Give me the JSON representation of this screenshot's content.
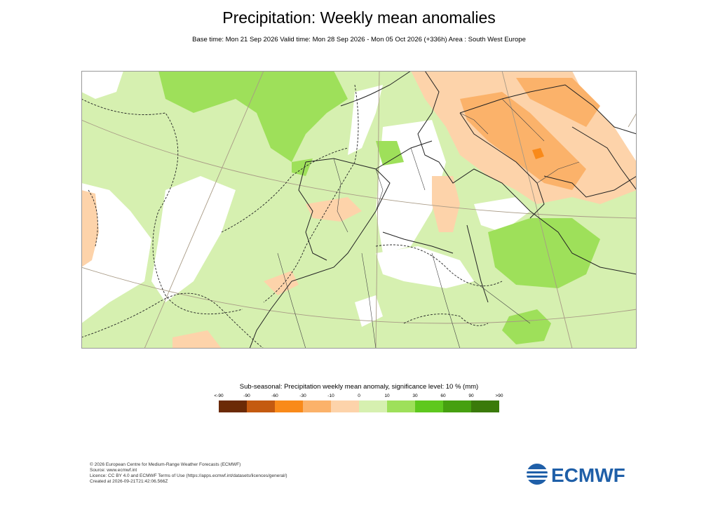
{
  "header": {
    "title": "Precipitation: Weekly mean anomalies",
    "subtitle": "Base time: Mon 21 Sep 2026 Valid time: Mon 28 Sep 2026 - Mon 05 Oct 2026 (+336h) Area : South West Europe"
  },
  "legend": {
    "title": "Sub-seasonal: Precipitation weekly mean anomaly, significance level: 10 % (mm)",
    "ticks": [
      "<-90",
      "-90",
      "-60",
      "-30",
      "-10",
      "0",
      "10",
      "30",
      "60",
      "90",
      ">90"
    ],
    "colors": [
      "#6b2a06",
      "#c45a10",
      "#f98a1a",
      "#fbb26a",
      "#fdd3aa",
      "#d6f0b0",
      "#9ee05a",
      "#5ec81e",
      "#46a010",
      "#3a7a0a"
    ]
  },
  "map": {
    "region": "South West Europe",
    "colors": {
      "ocean": "#ffffff",
      "light_positive": "#d6f0b0",
      "positive": "#9ee05a",
      "light_negative": "#fdd3aa",
      "negative": "#fbb26a",
      "strong_negative": "#f98a1a"
    }
  },
  "footer": {
    "lines": [
      "© 2026 European Centre for Medium-Range Weather Forecasts (ECMWF)",
      "Source: www.ecmwf.int",
      "Licence: CC BY 4.0 and ECMWF Terms of Use (https://apps.ecmwf.int/datasets/licences/general/)",
      "Created at 2026-09-21T21:42:06.566Z"
    ]
  },
  "logo": {
    "text": "ECMWF",
    "color": "#1f5fa8"
  }
}
